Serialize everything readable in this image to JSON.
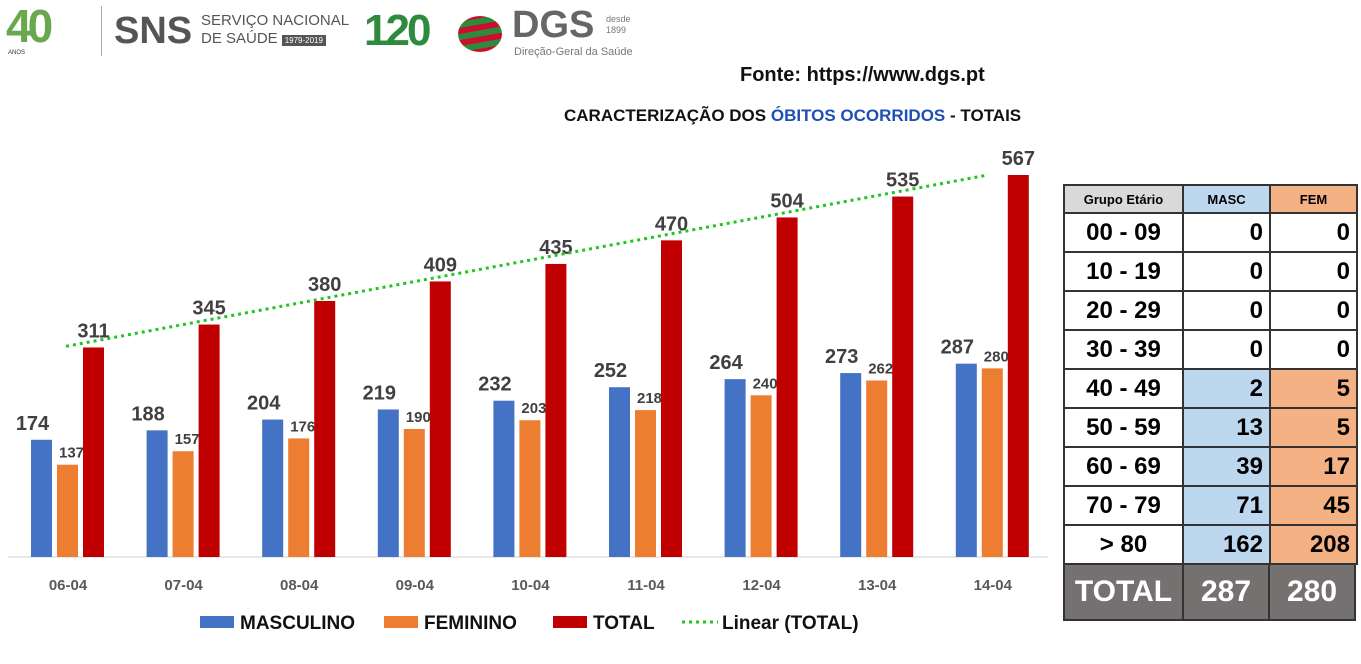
{
  "header": {
    "logo40": "40",
    "anos": "ANOS",
    "sns": "SNS",
    "sns_line1": "SERVIÇO NACIONAL",
    "sns_line2": "DE SAÚDE",
    "sns_years": "1979-2019",
    "dgs120": "120",
    "dgs": "DGS",
    "desde": "desde",
    "desde_year": "1899",
    "dgs_name": "Direção-Geral da Saúde"
  },
  "source": "Fonte: https://www.dgs.pt",
  "title": {
    "pre": "CARACTERIZAÇÃO DOS ",
    "highlight": "ÓBITOS OCORRIDOS",
    "post": " - TOTAIS"
  },
  "chart_data": {
    "type": "bar",
    "title": "CARACTERIZAÇÃO DOS ÓBITOS OCORRIDOS - TOTAIS",
    "categories": [
      "06-04",
      "07-04",
      "08-04",
      "09-04",
      "10-04",
      "11-04",
      "12-04",
      "13-04",
      "14-04"
    ],
    "series": [
      {
        "name": "MASCULINO",
        "color": "#4472c4",
        "values": [
          174,
          188,
          204,
          219,
          232,
          252,
          264,
          273,
          287
        ]
      },
      {
        "name": "FEMININO",
        "color": "#ed7d31",
        "values": [
          137,
          157,
          176,
          190,
          203,
          218,
          240,
          262,
          280
        ]
      },
      {
        "name": "TOTAL",
        "color": "#c00000",
        "values": [
          311,
          345,
          380,
          409,
          435,
          470,
          504,
          535,
          567
        ]
      }
    ],
    "trendline": {
      "name": "Linear (TOTAL)",
      "series": "TOTAL",
      "color": "#22c422"
    },
    "ylim": [
      0,
      567
    ],
    "legend": "bottom",
    "grid": false
  },
  "table": {
    "headers": [
      "Grupo Etário",
      "MASC",
      "FEM"
    ],
    "rows": [
      {
        "g": "00 - 09",
        "m": "0",
        "f": "0"
      },
      {
        "g": "10 - 19",
        "m": "0",
        "f": "0"
      },
      {
        "g": "20 - 29",
        "m": "0",
        "f": "0"
      },
      {
        "g": "30 - 39",
        "m": "0",
        "f": "0"
      },
      {
        "g": "40 - 49",
        "m": "2",
        "f": "5"
      },
      {
        "g": "50 - 59",
        "m": "13",
        "f": "5"
      },
      {
        "g": "60 - 69",
        "m": "39",
        "f": "17"
      },
      {
        "g": "70 - 79",
        "m": "71",
        "f": "45"
      },
      {
        "g": "> 80",
        "m": "162",
        "f": "208"
      }
    ],
    "total": {
      "label": "TOTAL",
      "m": "287",
      "f": "280"
    }
  }
}
